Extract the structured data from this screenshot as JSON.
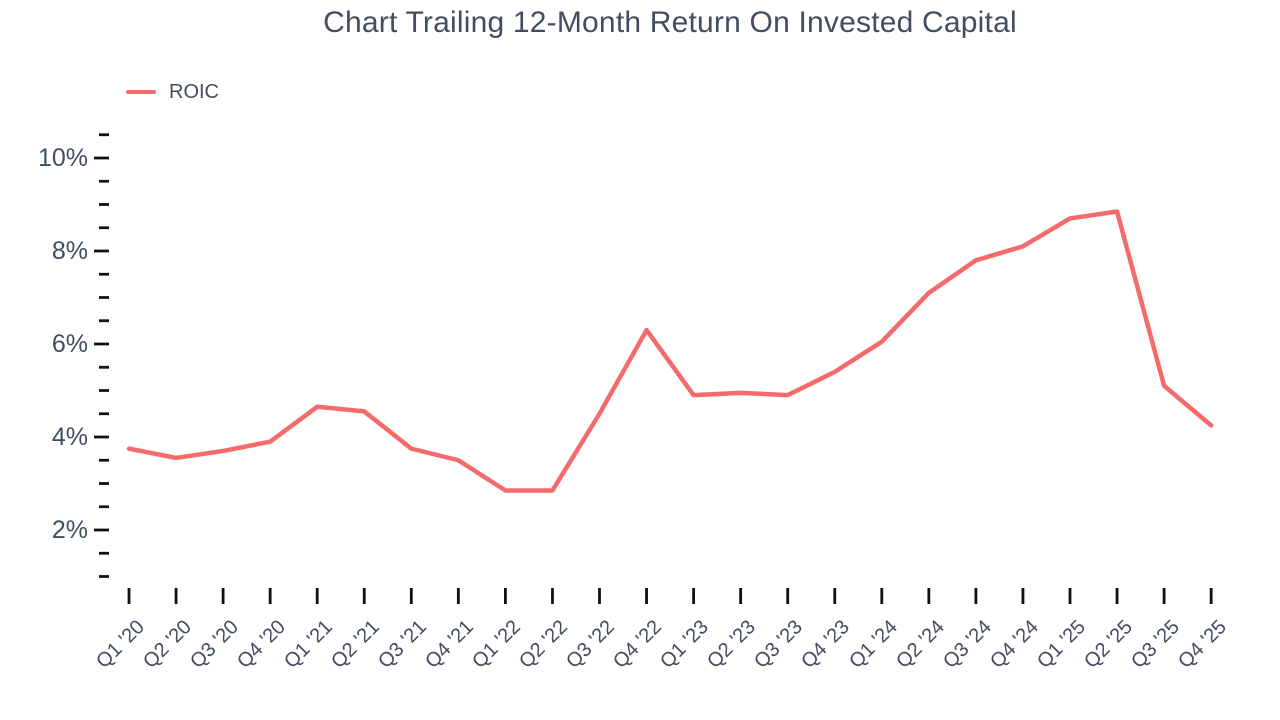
{
  "chart_data": {
    "type": "line",
    "title": "Chart Trailing 12-Month Return On Invested Capital",
    "categories": [
      "Q1 '20",
      "Q2 '20",
      "Q3 '20",
      "Q4 '20",
      "Q1 '21",
      "Q2 '21",
      "Q3 '21",
      "Q4 '21",
      "Q1 '22",
      "Q2 '22",
      "Q3 '22",
      "Q4 '22",
      "Q1 '23",
      "Q2 '23",
      "Q3 '23",
      "Q4 '23",
      "Q1 '24",
      "Q2 '24",
      "Q3 '24",
      "Q4 '24",
      "Q1 '25",
      "Q2 '25",
      "Q3 '25",
      "Q4 '25"
    ],
    "series": [
      {
        "name": "ROIC",
        "color": "#F56B6B",
        "values": [
          3.75,
          3.55,
          3.7,
          3.9,
          4.65,
          4.55,
          3.75,
          3.5,
          2.85,
          2.85,
          4.5,
          6.3,
          4.9,
          4.95,
          4.9,
          5.4,
          6.05,
          7.1,
          7.8,
          8.1,
          8.7,
          8.85,
          5.1,
          4.25
        ]
      }
    ],
    "unit": "%",
    "xlabel": "",
    "ylabel": "",
    "y_axis": {
      "min": 1,
      "max": 10.5,
      "minor_step": 0.5,
      "labeled_ticks": [
        2,
        4,
        6,
        8,
        10
      ],
      "label_suffix": "%"
    },
    "grid": false,
    "legend_position": "top-left",
    "colors": {
      "line": "#F56B6B",
      "text": "#424E60",
      "tick": "#111111",
      "background": "#FFFFFF"
    }
  }
}
